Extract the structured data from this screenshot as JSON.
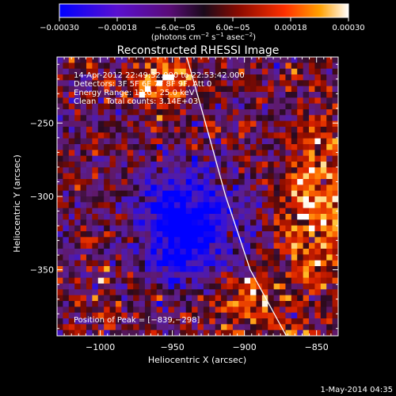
{
  "chart_data": {
    "type": "heatmap",
    "title": "Reconstructed RHESSI Image",
    "xlabel": "Heliocentric X (arcsec)",
    "ylabel": "Heliocentric Y (arcsec)",
    "xlim": [
      -1030,
      -835
    ],
    "ylim": [
      -395,
      -205
    ],
    "x_ticks": [
      -1000,
      -950,
      -900,
      -850
    ],
    "x_tick_labels": [
      "−1000",
      "−950",
      "−900",
      "−850"
    ],
    "y_ticks": [
      -250,
      -300,
      -350
    ],
    "y_tick_labels": [
      "−250",
      "−300",
      "−350"
    ],
    "colorbar": {
      "range": [
        -0.0003,
        0.0003
      ],
      "ticks": [
        -0.0003,
        -0.00018,
        -6e-05,
        6e-05,
        0.00018,
        0.0003
      ],
      "tick_labels": [
        "−0.00030",
        "−0.00018",
        "−6.0e−05",
        "6.0e−05",
        "0.00018",
        "0.00030"
      ],
      "unit_main": "(photons cm",
      "unit_exp1": "−2",
      "unit_mid": " s",
      "unit_exp2": "−1",
      "unit_tail": " asec",
      "unit_exp3": "−2",
      "unit_close": ")",
      "colors": [
        "#0000ff",
        "#5a10d0",
        "#6a0e8a",
        "#1a0a1a",
        "#8a0a00",
        "#ff3000",
        "#ffa000",
        "#ffffff"
      ]
    },
    "annotations": [
      "14-Apr-2012 22:49:32.000 to 22:53:42.000",
      "Detectors: 3F 5F 6F 7F 8F 9F, Att 0",
      "Energy Range: 12.0 - 25.0 keV",
      "Clean    Total counts: 3.14E+03"
    ],
    "peak_label": "Position of Peak = [−839,−298]",
    "peak_position": [
      -839,
      -298
    ],
    "limb_curve": [
      [
        -940,
        -205
      ],
      [
        -927,
        -250
      ],
      [
        -913,
        -300
      ],
      [
        -896,
        -350
      ],
      [
        -871,
        -395
      ]
    ],
    "grid": false
  },
  "footer": {
    "timestamp": "1-May-2014 04:35"
  }
}
